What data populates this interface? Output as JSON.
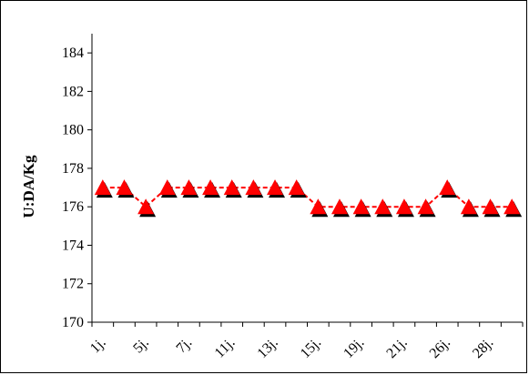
{
  "chart_data": {
    "type": "line",
    "title": "",
    "xlabel": "",
    "ylabel": "U:DA/Kg",
    "ylim": [
      170,
      185
    ],
    "yticks": [
      170,
      172,
      174,
      176,
      178,
      180,
      182,
      184
    ],
    "grid": false,
    "legend": "none",
    "categories": [
      "1j.",
      "",
      "5j.",
      "",
      "7j.",
      "",
      "11j.",
      "",
      "13j.",
      "",
      "15j.",
      "",
      "19j.",
      "",
      "21j.",
      "",
      "26j.",
      "",
      "28j.",
      ""
    ],
    "series": [
      {
        "values": [
          177,
          177,
          176,
          177,
          177,
          177,
          177,
          177,
          177,
          177,
          176,
          176,
          176,
          176,
          176,
          176,
          177,
          176,
          176,
          176
        ],
        "line_color": "#ff0000",
        "line_style": "dashed",
        "marker": "triangle",
        "marker_color": "#ff0000",
        "marker_shadow_color": "#000000"
      }
    ]
  }
}
